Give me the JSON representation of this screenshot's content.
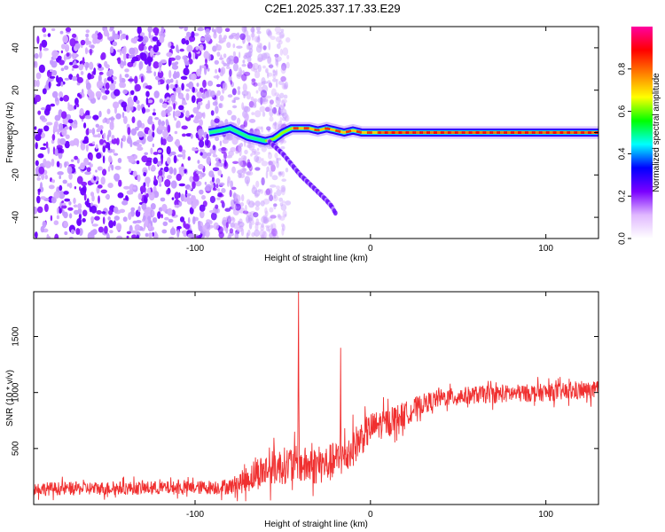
{
  "title": "C2E1.2025.337.17.33.E29",
  "chart_data": [
    {
      "type": "heatmap",
      "name": "spectrogram",
      "xlabel": "Height of straight line (km)",
      "ylabel": "Frequency (Hz)",
      "xlim": [
        -192,
        130
      ],
      "ylim": [
        -50,
        50
      ],
      "xticks": [
        -100,
        0,
        100
      ],
      "xtick_labels": [
        "-100",
        "0",
        "100"
      ],
      "yticks": [
        -40,
        -20,
        0,
        20,
        40
      ],
      "ytick_labels": [
        "-40",
        "-20",
        "0",
        "20",
        "40"
      ],
      "colorbar": {
        "label": "Normalized spectral amplitude",
        "range": [
          0,
          1
        ],
        "ticks": [
          0,
          0.2,
          0.4,
          0.6,
          0.8
        ],
        "tick_labels": [
          "0.0",
          "0.2",
          "0.4",
          "0.6",
          "0.8"
        ],
        "colors": [
          "#ffffff",
          "#e0b8ff",
          "#7a00ff",
          "#0000ff",
          "#00ffff",
          "#00ff00",
          "#ffff00",
          "#ff8000",
          "#ff0000",
          "#ff00a0"
        ]
      },
      "features": {
        "noise_region_x": [
          -192,
          -55
        ],
        "carrier_line": {
          "x": [
            -92,
            -85,
            -80,
            -75,
            -70,
            -65,
            -60,
            -55,
            -50,
            -45,
            -40,
            -35,
            -30,
            -25,
            -20,
            -15,
            -10,
            -5,
            0,
            20,
            60,
            100,
            130
          ],
          "y": [
            0,
            1,
            2,
            0,
            -2,
            -3,
            -4,
            -3,
            0,
            2,
            2,
            2,
            1,
            2,
            1,
            0,
            1,
            0,
            0,
            0,
            0,
            0,
            0
          ]
        },
        "descending_trace": {
          "x": [
            -58,
            -50,
            -45,
            -40,
            -35,
            -30,
            -25,
            -22,
            -20
          ],
          "y": [
            -4,
            -10,
            -15,
            -20,
            -24,
            -28,
            -32,
            -35,
            -38
          ]
        }
      }
    },
    {
      "type": "line",
      "name": "snr",
      "xlabel": "Height of straight line (km)",
      "ylabel": "SNR (10 * v/v)",
      "xlim": [
        -192,
        130
      ],
      "ylim": [
        0,
        1900
      ],
      "xticks": [
        -100,
        0,
        100
      ],
      "xtick_labels": [
        "-100",
        "0",
        "100"
      ],
      "yticks": [
        500,
        1000,
        1500
      ],
      "ytick_labels": [
        "500",
        "1000",
        "1500"
      ],
      "color": "#f03030",
      "envelope": {
        "x": [
          -192,
          -150,
          -100,
          -80,
          -72,
          -65,
          -55,
          -45,
          -35,
          -25,
          -15,
          -5,
          0,
          10,
          20,
          30,
          40,
          60,
          80,
          100,
          115,
          130
        ],
        "mean": [
          140,
          145,
          150,
          160,
          210,
          280,
          330,
          360,
          340,
          360,
          420,
          600,
          680,
          740,
          810,
          900,
          950,
          980,
          990,
          1000,
          1010,
          1020
        ],
        "noise": [
          60,
          60,
          60,
          70,
          110,
          150,
          160,
          170,
          170,
          170,
          180,
          160,
          140,
          130,
          110,
          90,
          80,
          80,
          80,
          80,
          80,
          80
        ]
      },
      "spikes": [
        {
          "x": -41,
          "y": 1900
        },
        {
          "x": -17,
          "y": 1400
        }
      ]
    }
  ]
}
